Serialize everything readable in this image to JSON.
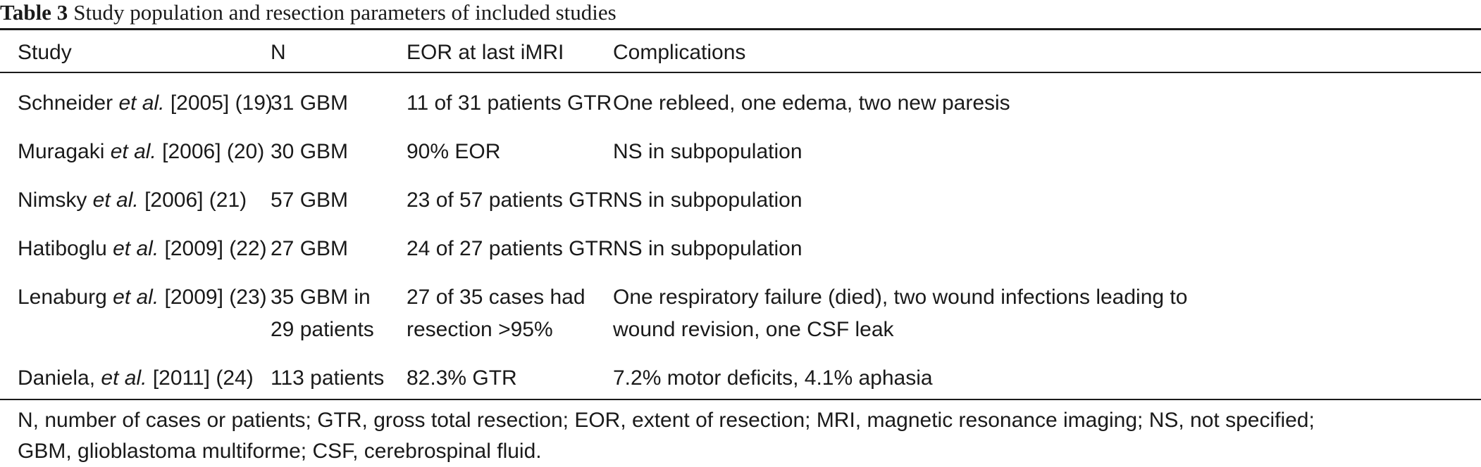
{
  "caption": {
    "label": "Table 3",
    "text": "Study population and resection parameters of included studies"
  },
  "headers": {
    "study": "Study",
    "n": "N",
    "eor": "EOR at last iMRI",
    "complications": "Complications"
  },
  "rows": [
    {
      "author": "Schneider",
      "etal": "et al.",
      "ref": "[2005] (19)",
      "n": [
        "31 GBM"
      ],
      "eor": [
        "11 of 31 patients GTR"
      ],
      "complications": [
        "One rebleed, one edema, two new paresis"
      ]
    },
    {
      "author": "Muragaki",
      "etal": "et al.",
      "ref": "[2006] (20)",
      "n": [
        "30 GBM"
      ],
      "eor": [
        "90% EOR"
      ],
      "complications": [
        "NS in subpopulation"
      ]
    },
    {
      "author": "Nimsky",
      "etal": "et al.",
      "ref": "[2006] (21)",
      "n": [
        "57 GBM"
      ],
      "eor": [
        "23 of 57 patients GTR"
      ],
      "complications": [
        "NS in subpopulation"
      ]
    },
    {
      "author": "Hatiboglu",
      "etal": "et al.",
      "ref": "[2009] (22)",
      "n": [
        "27 GBM"
      ],
      "eor": [
        "24 of 27 patients GTR"
      ],
      "complications": [
        "NS in subpopulation"
      ]
    },
    {
      "author": "Lenaburg",
      "etal": "et al.",
      "ref": "[2009] (23)",
      "n": [
        "35 GBM in",
        "29 patients"
      ],
      "eor": [
        "27 of 35 cases had",
        "resection >95%"
      ],
      "complications": [
        "One respiratory failure (died), two wound infections leading to",
        "wound revision, one CSF leak"
      ]
    },
    {
      "author": "Daniela,",
      "etal": "et al.",
      "ref": "[2011] (24)",
      "n": [
        "113 patients"
      ],
      "eor": [
        "82.3% GTR"
      ],
      "complications": [
        "7.2% motor deficits, 4.1% aphasia"
      ]
    }
  ],
  "footnote": [
    "N, number of cases or patients; GTR, gross total resection; EOR, extent of resection; MRI, magnetic resonance imaging; NS, not specified;",
    "GBM, glioblastoma multiforme; CSF, cerebrospinal fluid."
  ]
}
